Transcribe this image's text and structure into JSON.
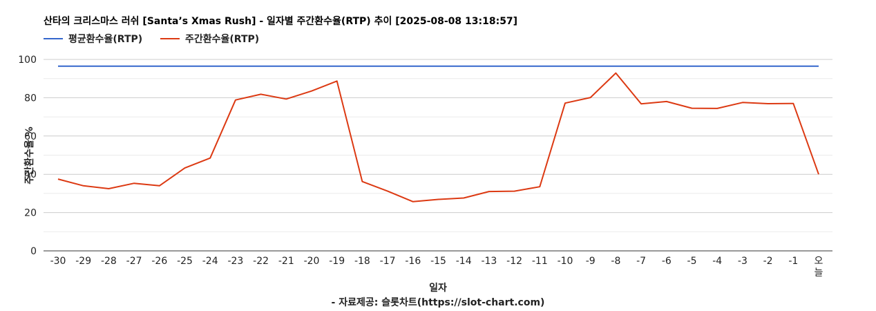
{
  "chart_data": {
    "type": "line",
    "title": "산타의 크리스마스 러쉬 [Santa’s Xmas Rush] - 일자별 주간환수율(RTP) 추이 [2025-08-08 13:18:57]",
    "xlabel": "일자",
    "ylabel": "주간환수율 %",
    "source": "- 자료제공: 슬롯차트(https://slot-chart.com)",
    "ylim": [
      0,
      100
    ],
    "yticks": [
      "0",
      "20",
      "40",
      "60",
      "80",
      "100"
    ],
    "grid": true,
    "legend_position": "top-left",
    "categories": [
      "-30",
      "-29",
      "-28",
      "-27",
      "-26",
      "-25",
      "-24",
      "-23",
      "-22",
      "-21",
      "-20",
      "-19",
      "-18",
      "-17",
      "-16",
      "-15",
      "-14",
      "-13",
      "-12",
      "-11",
      "-10",
      "-9",
      "-8",
      "-7",
      "-6",
      "-5",
      "-4",
      "-3",
      "-2",
      "-1",
      "오늘"
    ],
    "series": [
      {
        "name": "평균환수율(RTP)",
        "color": "#3366cc",
        "values": [
          96.5,
          96.5,
          96.5,
          96.5,
          96.5,
          96.5,
          96.5,
          96.5,
          96.5,
          96.5,
          96.5,
          96.5,
          96.5,
          96.5,
          96.5,
          96.5,
          96.5,
          96.5,
          96.5,
          96.5,
          96.5,
          96.5,
          96.5,
          96.5,
          96.5,
          96.5,
          96.5,
          96.5,
          96.5,
          96.5,
          96.5
        ]
      },
      {
        "name": "주간환수율(RTP)",
        "color": "#dc3912",
        "values": [
          37.5,
          34,
          32.5,
          35.3,
          34,
          43.3,
          48.5,
          78.8,
          81.8,
          79.3,
          83.5,
          88.7,
          36.2,
          31.2,
          25.7,
          26.9,
          27.6,
          31,
          31.2,
          33.5,
          77.2,
          80.1,
          92.9,
          76.8,
          78,
          74.5,
          74.4,
          77.5,
          76.9,
          77,
          40
        ]
      }
    ]
  }
}
